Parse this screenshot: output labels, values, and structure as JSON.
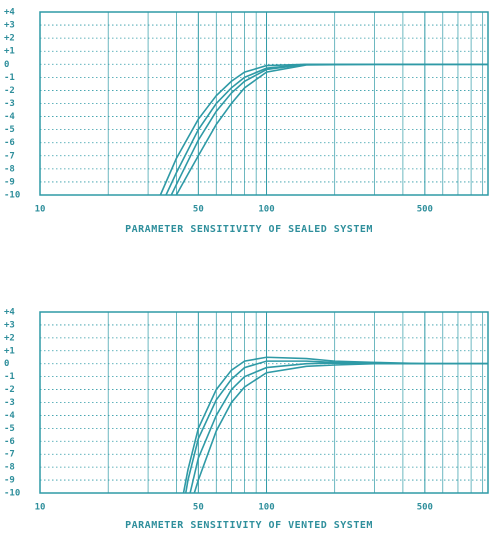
{
  "chart_data": [
    {
      "type": "line",
      "title": "PARAMETER SENSITIVITY OF SEALED SYSTEM",
      "log_x": true,
      "grid": true,
      "color": "#2f9aa6",
      "xlim": [
        10,
        950
      ],
      "xticks": [
        10,
        50,
        100,
        500
      ],
      "xminor_ticks": [
        20,
        30,
        40,
        60,
        70,
        80,
        90,
        200,
        300,
        400,
        600,
        700,
        800,
        900
      ],
      "ylim": [
        -10,
        4
      ],
      "yticks": [
        {
          "value": 4,
          "label": "+4"
        },
        {
          "value": 3,
          "label": "+3"
        },
        {
          "value": 2,
          "label": "+2"
        },
        {
          "value": 1,
          "label": "+1"
        },
        0,
        -1,
        -2,
        -3,
        -4,
        -5,
        -6,
        -7,
        -8,
        -9,
        -10
      ],
      "series": [
        {
          "color": "#2f9aa6",
          "x": [
            34,
            40,
            50,
            60,
            70,
            80,
            100,
            150,
            300,
            950
          ],
          "values": [
            -10,
            -7.2,
            -4.2,
            -2.4,
            -1.3,
            -0.6,
            -0.1,
            0,
            0,
            0
          ]
        },
        {
          "color": "#2f9aa6",
          "x": [
            36,
            40,
            50,
            60,
            70,
            80,
            100,
            150,
            300,
            950
          ],
          "values": [
            -10,
            -8.3,
            -5.0,
            -3.0,
            -1.8,
            -1.0,
            -0.3,
            0,
            0,
            0
          ]
        },
        {
          "color": "#2f9aa6",
          "x": [
            38,
            40,
            50,
            60,
            70,
            80,
            100,
            150,
            300,
            950
          ],
          "values": [
            -10,
            -9.2,
            -5.8,
            -3.6,
            -2.2,
            -1.3,
            -0.4,
            0,
            0,
            0
          ]
        },
        {
          "color": "#2f9aa6",
          "x": [
            40,
            45,
            50,
            60,
            70,
            80,
            100,
            150,
            300,
            950
          ],
          "values": [
            -10,
            -8.4,
            -7.0,
            -4.6,
            -3.0,
            -1.8,
            -0.6,
            -0.05,
            0,
            0
          ]
        }
      ]
    },
    {
      "type": "line",
      "title": "PARAMETER SENSITIVITY OF VENTED SYSTEM",
      "log_x": true,
      "grid": true,
      "color": "#2f9aa6",
      "xlim": [
        10,
        950
      ],
      "xticks": [
        10,
        50,
        100,
        500
      ],
      "xminor_ticks": [
        20,
        30,
        40,
        60,
        70,
        80,
        90,
        200,
        300,
        400,
        600,
        700,
        800,
        900
      ],
      "ylim": [
        -10,
        4
      ],
      "yticks": [
        {
          "value": 4,
          "label": "+4"
        },
        {
          "value": 3,
          "label": "+3"
        },
        {
          "value": 2,
          "label": "+2"
        },
        {
          "value": 1,
          "label": "+1"
        },
        0,
        -1,
        -2,
        -3,
        -4,
        -5,
        -6,
        -7,
        -8,
        -9,
        -10
      ],
      "series": [
        {
          "color": "#2f9aa6",
          "x": [
            43,
            45,
            50,
            60,
            70,
            80,
            100,
            150,
            200,
            300,
            500,
            950
          ],
          "values": [
            -10,
            -8.2,
            -5.0,
            -2.0,
            -0.5,
            0.2,
            0.5,
            0.4,
            0.2,
            0.1,
            0,
            0
          ]
        },
        {
          "color": "#2f9aa6",
          "x": [
            44,
            45,
            50,
            60,
            70,
            80,
            100,
            150,
            200,
            300,
            500,
            950
          ],
          "values": [
            -10,
            -9.0,
            -5.8,
            -2.8,
            -1.2,
            -0.3,
            0.2,
            0.2,
            0.1,
            0.05,
            0,
            0
          ]
        },
        {
          "color": "#2f9aa6",
          "x": [
            46,
            50,
            60,
            70,
            80,
            100,
            150,
            200,
            300,
            500,
            950
          ],
          "values": [
            -10,
            -7.3,
            -4.0,
            -2.0,
            -1.0,
            -0.3,
            0,
            0.05,
            0,
            0,
            0
          ]
        },
        {
          "color": "#2f9aa6",
          "x": [
            48,
            50,
            60,
            70,
            80,
            100,
            150,
            200,
            300,
            500,
            950
          ],
          "values": [
            -10,
            -9.0,
            -5.2,
            -3.0,
            -1.8,
            -0.7,
            -0.2,
            -0.1,
            0,
            0,
            0
          ]
        }
      ]
    }
  ]
}
